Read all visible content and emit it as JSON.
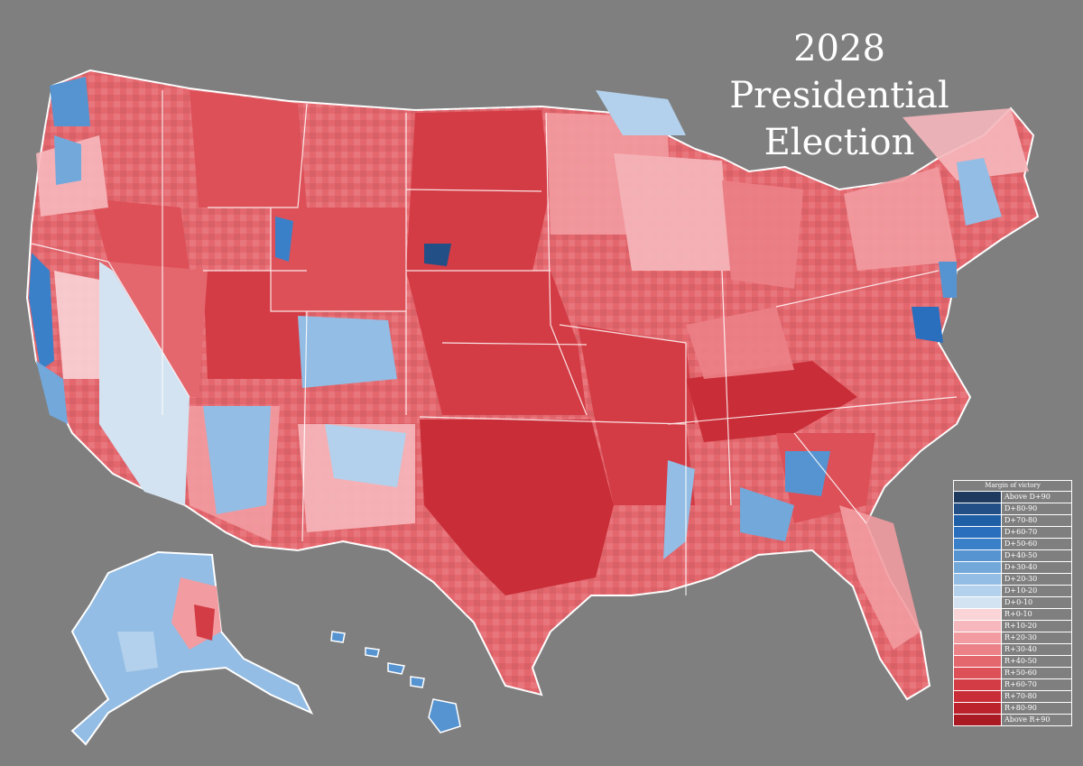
{
  "title": {
    "line1": "2028",
    "line2": "Presidential",
    "line3": "Election"
  },
  "legend": {
    "title": "Margin of victory",
    "items": [
      {
        "label": "Above D+90",
        "color": "#1f3a5f"
      },
      {
        "label": "D+80-90",
        "color": "#214f86"
      },
      {
        "label": "D+70-80",
        "color": "#1f5fa6"
      },
      {
        "label": "D+60-70",
        "color": "#2a6fbd"
      },
      {
        "label": "D+50-60",
        "color": "#3a80c9"
      },
      {
        "label": "D+40-50",
        "color": "#5694d1"
      },
      {
        "label": "D+30-40",
        "color": "#73a8db"
      },
      {
        "label": "D+20-30",
        "color": "#93bde4"
      },
      {
        "label": "D+10-20",
        "color": "#b3d1ec"
      },
      {
        "label": "D+0-10",
        "color": "#d3e3f2"
      },
      {
        "label": "R+0-10",
        "color": "#fad4d6"
      },
      {
        "label": "R+10-20",
        "color": "#f6b8bc"
      },
      {
        "label": "R+20-30",
        "color": "#f29ca1"
      },
      {
        "label": "R+30-40",
        "color": "#ec8187"
      },
      {
        "label": "R+40-50",
        "color": "#e5676e"
      },
      {
        "label": "R+50-60",
        "color": "#dd5058"
      },
      {
        "label": "R+60-70",
        "color": "#d43c45"
      },
      {
        "label": "R+70-80",
        "color": "#c92d37"
      },
      {
        "label": "R+80-90",
        "color": "#bb222c"
      },
      {
        "label": "Above R+90",
        "color": "#a91a23"
      }
    ]
  }
}
